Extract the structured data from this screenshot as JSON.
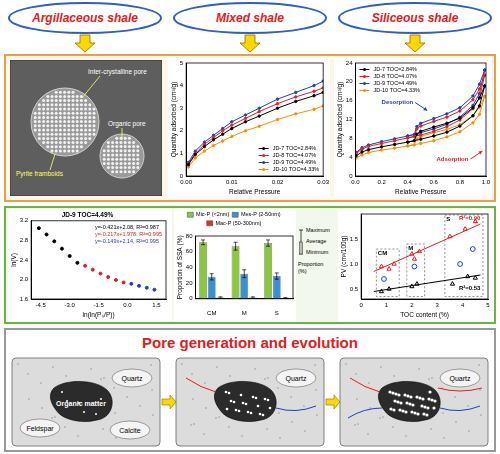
{
  "header": {
    "shale_types": [
      "Argillaceous shale",
      "Mixed shale",
      "Siliceous shale"
    ]
  },
  "sem_image": {
    "labels": [
      "Inter-crystalline pore",
      "Organic pore",
      "Pyrite framboids"
    ]
  },
  "chart_data": [
    {
      "type": "line",
      "x_label": "Relative Pressure",
      "y_label": "Quantity adsorbed (cm³/g)",
      "x": [
        0.0005,
        0.002,
        0.004,
        0.006,
        0.008,
        0.01,
        0.013,
        0.016,
        0.02,
        0.024,
        0.028,
        0.03
      ],
      "xlim": [
        0,
        0.03
      ],
      "xticks": [
        {
          "value": 0,
          "label": "0.00"
        },
        0.01,
        0.02,
        0.03
      ],
      "ylim": [
        0,
        5
      ],
      "yticks": [
        0,
        1,
        2,
        3,
        4,
        5
      ],
      "grid": false,
      "legend": "lower right",
      "series": [
        {
          "name": "JD-7 TOC=2.84%",
          "color": "#000000",
          "marker": "circle",
          "values": [
            0.5,
            0.95,
            1.3,
            1.6,
            1.85,
            2.1,
            2.4,
            2.65,
            3.0,
            3.3,
            3.55,
            3.7
          ]
        },
        {
          "name": "JD-8 TOC=4.07%",
          "color": "#e02020",
          "marker": "circle",
          "values": [
            0.55,
            1.0,
            1.4,
            1.7,
            2.0,
            2.25,
            2.55,
            2.85,
            3.2,
            3.5,
            3.75,
            3.9
          ]
        },
        {
          "name": "JD-9 TOC=4.49%",
          "color": "#1f3fbf",
          "marker": "circle",
          "values": [
            0.6,
            1.1,
            1.5,
            1.8,
            2.1,
            2.4,
            2.7,
            3.0,
            3.4,
            3.7,
            4.0,
            4.2
          ]
        },
        {
          "name": "JD-10 TOC=4.33%",
          "color": "#ff8c00",
          "marker": "circle",
          "values": [
            0.4,
            0.8,
            1.1,
            1.35,
            1.55,
            1.75,
            2.0,
            2.2,
            2.5,
            2.75,
            2.95,
            3.1
          ]
        }
      ]
    },
    {
      "type": "line",
      "x_label": "Relative Pressure",
      "y_label": "Quantity adsorbed (cm³/g)",
      "x": [
        0.005,
        0.05,
        0.1,
        0.2,
        0.3,
        0.4,
        0.5,
        0.6,
        0.7,
        0.8,
        0.9,
        0.95,
        0.99,
        0.99,
        0.95,
        0.9,
        0.8,
        0.7,
        0.6,
        0.5,
        0.47,
        0.45,
        0.4
      ],
      "xlim": [
        0,
        1
      ],
      "xticks": [
        {
          "value": 0,
          "label": "0.0"
        },
        0.2,
        0.4,
        0.6,
        0.8,
        {
          "value": 1,
          "label": "1.0"
        }
      ],
      "ylim": [
        0,
        24
      ],
      "yticks": [
        0,
        4,
        8,
        12,
        16,
        20,
        24
      ],
      "grid": false,
      "legend": "upper left",
      "annotations": [
        {
          "text": "Desorption",
          "color": "#1f3fbf"
        },
        {
          "text": "Adsorption",
          "color": "#e02020"
        }
      ],
      "series": [
        {
          "name": "JD-7 TOC=2.84%",
          "color": "#000000",
          "marker": "circle",
          "values": [
            4.3,
            5.1,
            5.6,
            6.2,
            6.7,
            7.2,
            7.8,
            8.5,
            9.3,
            10.6,
            12.8,
            14.9,
            19.1,
            19.1,
            16.6,
            14.5,
            12.3,
            11.2,
            10.4,
            9.5,
            8.9,
            7.5,
            7.2
          ]
        },
        {
          "name": "JD-8 TOC=4.07%",
          "color": "#e02020",
          "marker": "circle",
          "values": [
            4.8,
            5.7,
            6.3,
            6.9,
            7.5,
            8.1,
            8.7,
            9.5,
            10.5,
            11.9,
            14.3,
            16.6,
            21.4,
            21.4,
            18.5,
            16.2,
            13.8,
            12.5,
            11.6,
            10.6,
            10.0,
            8.4,
            8.1
          ]
        },
        {
          "name": "JD-9 TOC=4.49%",
          "color": "#1f3fbf",
          "marker": "circle",
          "values": [
            5.0,
            6.0,
            6.6,
            7.3,
            7.9,
            8.5,
            9.2,
            10.0,
            11.0,
            12.5,
            15.0,
            17.5,
            22.5,
            22.5,
            19.5,
            17.0,
            14.5,
            13.2,
            12.2,
            11.2,
            10.5,
            8.8,
            8.5
          ]
        },
        {
          "name": "JD-10 TOC=4.33%",
          "color": "#ff8c00",
          "marker": "circle",
          "values": [
            3.8,
            4.5,
            5.0,
            5.5,
            5.9,
            6.4,
            6.9,
            7.5,
            8.3,
            9.4,
            11.3,
            13.1,
            16.9,
            16.9,
            14.6,
            12.8,
            10.9,
            9.9,
            9.2,
            8.4,
            7.9,
            6.6,
            6.4
          ]
        }
      ]
    },
    {
      "type": "scatter",
      "title": "JD-9 TOC=4.49%",
      "x_label": "ln(ln(P₀/P))",
      "y_label": "ln(V)",
      "xlim": [
        -5,
        2
      ],
      "xticks": [
        -4.5,
        {
          "value": -3,
          "label": "-3.0"
        },
        -1.5,
        {
          "value": 0,
          "label": "0.0"
        },
        1.5
      ],
      "ylim": [
        1.6,
        3.2
      ],
      "yticks": [
        1.6,
        {
          "value": 2,
          "label": "2.0"
        },
        2.4,
        2.8,
        3.2
      ],
      "grid": false,
      "annotations": [
        {
          "text": "y=-0.421x+2.08, R²=0.987",
          "color": "#000000"
        },
        {
          "text": "y=-0.217x+1.978, R²=0.995",
          "color": "#e02020"
        },
        {
          "text": "y=-0.149x+2.14, R²=0.995",
          "color": "#1f3fbf"
        }
      ],
      "series": [
        {
          "color": "#000000",
          "marker": "circle",
          "x": [
            -4.6,
            -4.2,
            -3.8,
            -3.4,
            -3.0,
            -2.6
          ],
          "values": [
            3.05,
            2.92,
            2.78,
            2.63,
            2.48,
            2.34
          ]
        },
        {
          "color": "#e02020",
          "marker": "circle",
          "x": [
            -2.2,
            -1.8,
            -1.4,
            -1.0,
            -0.6,
            -0.2
          ],
          "values": [
            2.28,
            2.2,
            2.12,
            2.05,
            1.99,
            1.94
          ]
        },
        {
          "color": "#1f3fbf",
          "marker": "circle",
          "x": [
            0.2,
            0.6,
            1.0,
            1.4
          ],
          "values": [
            1.91,
            1.87,
            1.83,
            1.79
          ]
        }
      ]
    },
    {
      "type": "bar",
      "y_label": "Proportion of SSA (%)",
      "categories": [
        "CM",
        "M",
        "S"
      ],
      "ylim": [
        0,
        80
      ],
      "yticks": [
        0,
        20,
        40,
        60,
        80
      ],
      "grid": false,
      "legend": "top",
      "error_key": [
        "Maximum",
        "Average",
        "Minimum",
        "Proportion (%)"
      ],
      "series": [
        {
          "name": "Mic-P (<2nm)",
          "color": "#8dc63f",
          "values": [
            72,
            67,
            71
          ],
          "errors": [
            3,
            5,
            4
          ]
        },
        {
          "name": "Mes-P (2-50nm)",
          "color": "#3b8fd4",
          "values": [
            28,
            32,
            29
          ],
          "errors": [
            4,
            5,
            4
          ]
        },
        {
          "name": "Mac-P (50-300nm)",
          "color": "#e03030",
          "values": [
            1.5,
            1.5,
            1
          ],
          "errors": [
            1,
            1,
            0.5
          ]
        }
      ]
    },
    {
      "type": "scatter",
      "x_label": "TOC content (%)",
      "y_label": "PV (cm³/100g)",
      "xlim": [
        0,
        5
      ],
      "xticks": [
        0,
        1,
        2,
        3,
        4,
        5
      ],
      "ylim": [
        0.3,
        2.0
      ],
      "yticks": [
        0.5,
        {
          "value": 1,
          "label": "1.0"
        },
        1.5
      ],
      "grid": false,
      "groups": [
        {
          "name": "CM",
          "xrange": [
            0.6,
            1.5
          ],
          "yrange": [
            0.35,
            1.3
          ]
        },
        {
          "name": "M",
          "xrange": [
            1.8,
            2.5
          ],
          "yrange": [
            0.35,
            1.4
          ]
        },
        {
          "name": "S",
          "xrange": [
            3.3,
            4.8
          ],
          "yrange": [
            0.35,
            1.98
          ]
        }
      ],
      "series": [
        {
          "color": "#e02020",
          "marker": "triangle",
          "x": [
            0.8,
            1.1,
            1.3,
            2.0,
            2.1,
            2.3,
            3.5,
            4.1,
            4.5
          ],
          "values": [
            0.95,
            0.9,
            1.0,
            1.2,
            1.1,
            1.25,
            1.55,
            1.7,
            1.85
          ]
        },
        {
          "color": "#000000",
          "marker": "triangle",
          "x": [
            0.8,
            1.1,
            2.0,
            2.2,
            3.6,
            4.2,
            4.5
          ],
          "values": [
            0.45,
            0.5,
            0.55,
            0.6,
            0.6,
            0.75,
            0.72
          ]
        },
        {
          "color": "#1f3fbf",
          "marker": "circle",
          "x": [
            0.9,
            2.1,
            3.9,
            4.4
          ],
          "values": [
            0.7,
            0.95,
            1.0,
            1.3
          ]
        },
        {
          "name": "R²=0.90",
          "type": "line",
          "color": "#e02020",
          "x": [
            0.5,
            4.7
          ],
          "values": [
            0.85,
            1.8
          ]
        },
        {
          "name": "R²=0.53",
          "type": "line",
          "color": "#000000",
          "x": [
            0.5,
            4.7
          ],
          "values": [
            0.45,
            0.78
          ]
        }
      ]
    }
  ],
  "evolution": {
    "title": "Pore generation and evolution",
    "schematics": [
      {
        "organic_label": "Organic matter",
        "minerals": [
          "Quartz",
          "Feldspar",
          "Calcite"
        ]
      },
      {
        "minerals": [
          "Quartz"
        ]
      },
      {
        "minerals": [
          "Quartz"
        ]
      }
    ]
  }
}
